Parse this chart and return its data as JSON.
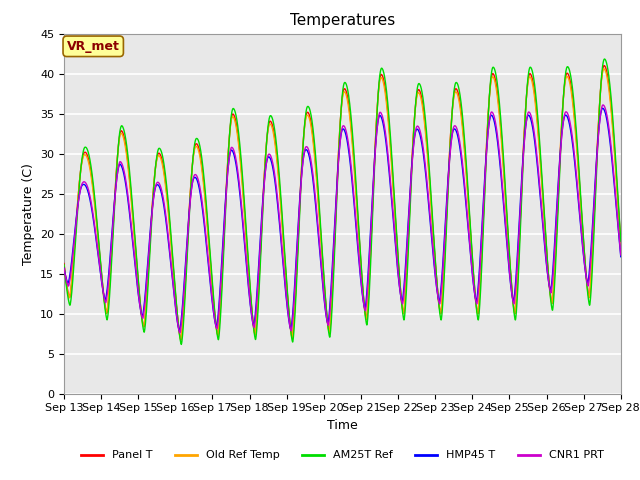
{
  "title": "Temperatures",
  "xlabel": "Time",
  "ylabel": "Temperature (C)",
  "ylim": [
    0,
    45
  ],
  "start_day": 13,
  "num_days": 15,
  "annotation_text": "VR_met",
  "annotation_color": "#8B0000",
  "annotation_bg": "#FFFF99",
  "annotation_edge": "#996600",
  "series": [
    {
      "name": "Panel T",
      "color": "#FF0000",
      "lw": 1.0
    },
    {
      "name": "Old Ref Temp",
      "color": "#FFA500",
      "lw": 1.0
    },
    {
      "name": "AM25T Ref",
      "color": "#00DD00",
      "lw": 1.0
    },
    {
      "name": "HMP45 T",
      "color": "#0000FF",
      "lw": 1.0
    },
    {
      "name": "CNR1 PRT",
      "color": "#CC00CC",
      "lw": 1.0
    }
  ],
  "plot_bg_color": "#E8E8E8",
  "fig_bg_color": "#FFFFFF",
  "grid_color": "#FFFFFF",
  "title_fontsize": 11,
  "label_fontsize": 9,
  "tick_fontsize": 8,
  "day_maxes": [
    30,
    33,
    30,
    31,
    35,
    34,
    35,
    38,
    40,
    38,
    38,
    40,
    40,
    40,
    41
  ],
  "day_mins": [
    12,
    9,
    8,
    6,
    8,
    7,
    7,
    8,
    10,
    10,
    10,
    10,
    10,
    12,
    12
  ]
}
